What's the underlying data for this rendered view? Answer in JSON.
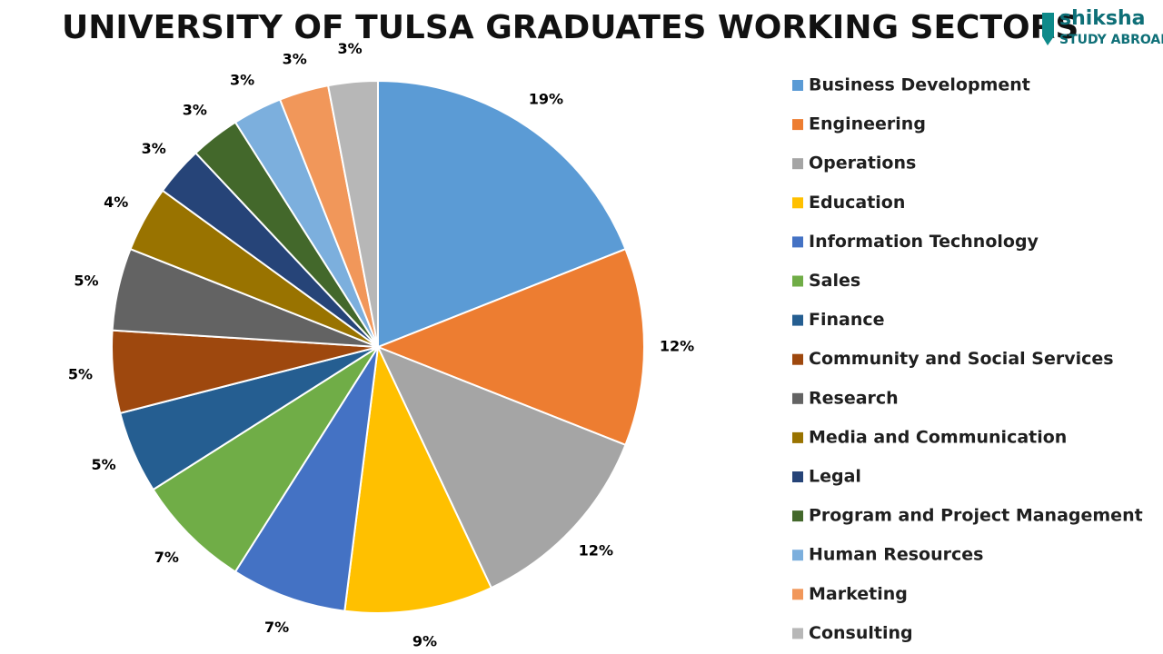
{
  "logo": {
    "name": "shiksha",
    "tagline": "STUDY ABROAD"
  },
  "chart_data": {
    "type": "pie",
    "title": "UNIVERSITY OF TULSA GRADUATES WORKING SECTORS",
    "categories": [
      "Business Development",
      "Engineering",
      "Operations",
      "Education",
      "Information Technology",
      "Sales",
      "Finance",
      "Community and Social Services",
      "Research",
      "Media and Communication",
      "Legal",
      "Program and Project Management",
      "Human Resources",
      "Marketing",
      "Consulting"
    ],
    "values": [
      19,
      12,
      12,
      9,
      7,
      7,
      5,
      5,
      5,
      4,
      3,
      3,
      3,
      3,
      3
    ],
    "value_labels": [
      "19%",
      "12%",
      "12%",
      "9%",
      "7%",
      "7%",
      "5%",
      "5%",
      "5%",
      "4%",
      "3%",
      "3%",
      "3%",
      "3%",
      "3%"
    ],
    "colors": [
      "#5b9bd5",
      "#ed7d31",
      "#a5a5a5",
      "#ffc000",
      "#4472c4",
      "#70ad47",
      "#255e91",
      "#9e480e",
      "#636363",
      "#997300",
      "#264478",
      "#43682b",
      "#7cafdd",
      "#f1975a",
      "#b7b7b7"
    ],
    "legend": "right"
  }
}
